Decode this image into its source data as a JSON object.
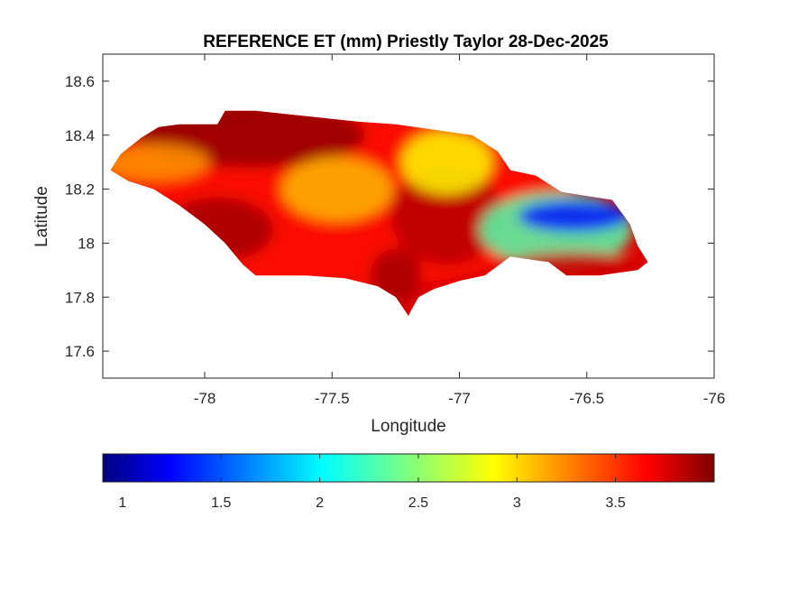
{
  "chart_data": {
    "type": "heatmap",
    "title": "REFERENCE ET (mm) Priestly Taylor 28-Dec-2025",
    "xlabel": "Longitude",
    "ylabel": "Latitude",
    "xlim": [
      -78.4,
      -76.0
    ],
    "ylim": [
      17.5,
      18.7
    ],
    "x_ticks": [
      -78,
      -77.5,
      -77,
      -76.5,
      -76
    ],
    "y_ticks": [
      17.6,
      17.8,
      18,
      18.2,
      18.4,
      18.6
    ],
    "x_tick_labels": [
      "-78",
      "-77.5",
      "-77",
      "-76.5",
      "-76"
    ],
    "y_tick_labels": [
      "17.6",
      "17.8",
      "18",
      "18.2",
      "18.4",
      "18.6"
    ],
    "colormap": "jet",
    "colorbar": {
      "orientation": "horizontal",
      "location": "below",
      "range": [
        0.9,
        4.0
      ],
      "ticks": [
        1,
        1.5,
        2,
        2.5,
        3,
        3.5
      ],
      "tick_labels": [
        "1",
        "1.5",
        "2",
        "2.5",
        "3",
        "3.5"
      ]
    },
    "region_outline": [
      [
        -78.37,
        18.27
      ],
      [
        -78.33,
        18.33
      ],
      [
        -78.25,
        18.39
      ],
      [
        -78.18,
        18.43
      ],
      [
        -78.1,
        18.44
      ],
      [
        -77.95,
        18.44
      ],
      [
        -77.92,
        18.49
      ],
      [
        -77.8,
        18.49
      ],
      [
        -77.6,
        18.47
      ],
      [
        -77.4,
        18.45
      ],
      [
        -77.25,
        18.44
      ],
      [
        -77.1,
        18.42
      ],
      [
        -76.95,
        18.4
      ],
      [
        -76.85,
        18.34
      ],
      [
        -76.8,
        18.27
      ],
      [
        -76.7,
        18.25
      ],
      [
        -76.6,
        18.19
      ],
      [
        -76.4,
        18.16
      ],
      [
        -76.33,
        18.07
      ],
      [
        -76.3,
        17.99
      ],
      [
        -76.26,
        17.93
      ],
      [
        -76.3,
        17.9
      ],
      [
        -76.45,
        17.88
      ],
      [
        -76.58,
        17.88
      ],
      [
        -76.65,
        17.93
      ],
      [
        -76.8,
        17.95
      ],
      [
        -76.9,
        17.88
      ],
      [
        -77.0,
        17.86
      ],
      [
        -77.1,
        17.83
      ],
      [
        -77.16,
        17.8
      ],
      [
        -77.19,
        17.75
      ],
      [
        -77.2,
        17.73
      ],
      [
        -77.25,
        17.8
      ],
      [
        -77.32,
        17.84
      ],
      [
        -77.45,
        17.87
      ],
      [
        -77.6,
        17.88
      ],
      [
        -77.8,
        17.88
      ],
      [
        -77.85,
        17.92
      ],
      [
        -77.92,
        18.0
      ],
      [
        -78.0,
        18.07
      ],
      [
        -78.1,
        18.14
      ],
      [
        -78.2,
        18.2
      ],
      [
        -78.3,
        18.23
      ]
    ],
    "value_zones": [
      {
        "lon": -77.5,
        "lat": 18.15,
        "value": 3.6,
        "rx": 0.95,
        "ry": 0.32
      },
      {
        "lon": -77.82,
        "lat": 18.4,
        "value": 3.95,
        "rx": 0.45,
        "ry": 0.12
      },
      {
        "lon": -77.95,
        "lat": 18.05,
        "value": 3.9,
        "rx": 0.22,
        "ry": 0.12
      },
      {
        "lon": -77.25,
        "lat": 17.88,
        "value": 3.9,
        "rx": 0.1,
        "ry": 0.1
      },
      {
        "lon": -77.05,
        "lat": 18.1,
        "value": 3.85,
        "rx": 0.22,
        "ry": 0.18
      },
      {
        "lon": -77.48,
        "lat": 18.2,
        "value": 3.1,
        "rx": 0.22,
        "ry": 0.12
      },
      {
        "lon": -78.2,
        "lat": 18.3,
        "value": 3.2,
        "rx": 0.22,
        "ry": 0.07
      },
      {
        "lon": -77.05,
        "lat": 18.3,
        "value": 2.9,
        "rx": 0.18,
        "ry": 0.12
      },
      {
        "lon": -76.62,
        "lat": 18.05,
        "value": 2.3,
        "rx": 0.3,
        "ry": 0.14
      },
      {
        "lon": -76.55,
        "lat": 18.1,
        "value": 1.3,
        "rx": 0.22,
        "ry": 0.06
      },
      {
        "lon": -76.55,
        "lat": 17.92,
        "value": 3.8,
        "rx": 0.25,
        "ry": 0.05
      }
    ]
  }
}
